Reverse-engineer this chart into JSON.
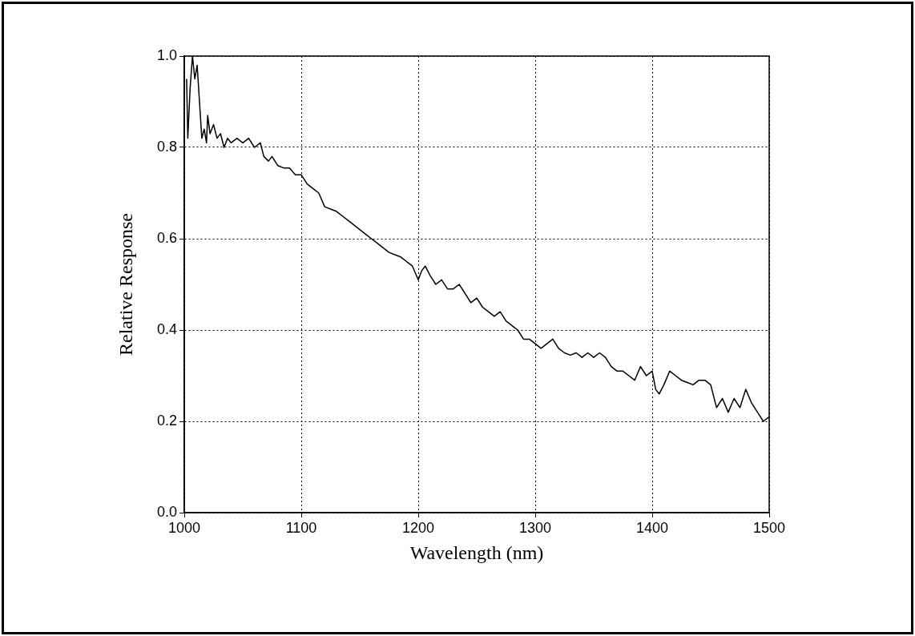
{
  "chart_data": {
    "type": "line",
    "xlabel": "Wavelength (nm)",
    "ylabel": "Relative Response",
    "xlim": [
      1000,
      1500
    ],
    "xticks": [
      1000,
      1100,
      1200,
      1300,
      1400,
      1500
    ],
    "ylim": [
      0,
      1
    ],
    "yticks": [
      {
        "value": 0,
        "label": "0.0"
      },
      {
        "value": 0.2,
        "label": "0.2"
      },
      {
        "value": 0.4,
        "label": "0.4"
      },
      {
        "value": 0.6,
        "label": "0.6"
      },
      {
        "value": 0.8,
        "label": "0.8"
      },
      {
        "value": 1,
        "label": "1.0"
      }
    ],
    "grid": true,
    "legend": false,
    "marker": "none",
    "line_style": "solid",
    "series": [
      {
        "color": "#000000",
        "x": [
          1002,
          1003,
          1005,
          1007,
          1009,
          1011,
          1013,
          1015,
          1017,
          1019,
          1020,
          1022,
          1025,
          1028,
          1031,
          1034,
          1037,
          1040,
          1045,
          1050,
          1055,
          1060,
          1065,
          1068,
          1072,
          1075,
          1080,
          1085,
          1090,
          1095,
          1100,
          1105,
          1110,
          1115,
          1120,
          1125,
          1130,
          1135,
          1140,
          1145,
          1150,
          1155,
          1160,
          1165,
          1170,
          1175,
          1180,
          1185,
          1190,
          1195,
          1200,
          1203,
          1206,
          1210,
          1215,
          1220,
          1225,
          1230,
          1235,
          1240,
          1245,
          1250,
          1255,
          1260,
          1265,
          1270,
          1275,
          1280,
          1285,
          1290,
          1295,
          1300,
          1305,
          1310,
          1315,
          1320,
          1325,
          1330,
          1335,
          1340,
          1345,
          1350,
          1355,
          1360,
          1365,
          1370,
          1375,
          1380,
          1385,
          1390,
          1395,
          1400,
          1403,
          1406,
          1410,
          1415,
          1420,
          1425,
          1430,
          1435,
          1440,
          1445,
          1450,
          1455,
          1460,
          1465,
          1470,
          1475,
          1480,
          1485,
          1490,
          1495,
          1500
        ],
        "values": [
          0.95,
          0.82,
          0.93,
          1.0,
          0.95,
          0.98,
          0.9,
          0.82,
          0.84,
          0.81,
          0.87,
          0.83,
          0.85,
          0.82,
          0.83,
          0.8,
          0.82,
          0.81,
          0.82,
          0.81,
          0.82,
          0.8,
          0.81,
          0.78,
          0.77,
          0.78,
          0.76,
          0.755,
          0.755,
          0.74,
          0.74,
          0.72,
          0.71,
          0.7,
          0.67,
          0.665,
          0.66,
          0.65,
          0.64,
          0.63,
          0.62,
          0.61,
          0.6,
          0.59,
          0.58,
          0.57,
          0.565,
          0.56,
          0.55,
          0.54,
          0.51,
          0.53,
          0.54,
          0.52,
          0.5,
          0.51,
          0.49,
          0.49,
          0.5,
          0.48,
          0.46,
          0.47,
          0.45,
          0.44,
          0.43,
          0.44,
          0.42,
          0.41,
          0.4,
          0.38,
          0.38,
          0.37,
          0.36,
          0.37,
          0.38,
          0.36,
          0.35,
          0.345,
          0.35,
          0.34,
          0.35,
          0.34,
          0.35,
          0.34,
          0.32,
          0.31,
          0.31,
          0.3,
          0.29,
          0.32,
          0.3,
          0.31,
          0.27,
          0.26,
          0.28,
          0.31,
          0.3,
          0.29,
          0.285,
          0.28,
          0.29,
          0.29,
          0.28,
          0.23,
          0.25,
          0.22,
          0.25,
          0.23,
          0.27,
          0.24,
          0.22,
          0.2,
          0.21
        ]
      }
    ]
  }
}
